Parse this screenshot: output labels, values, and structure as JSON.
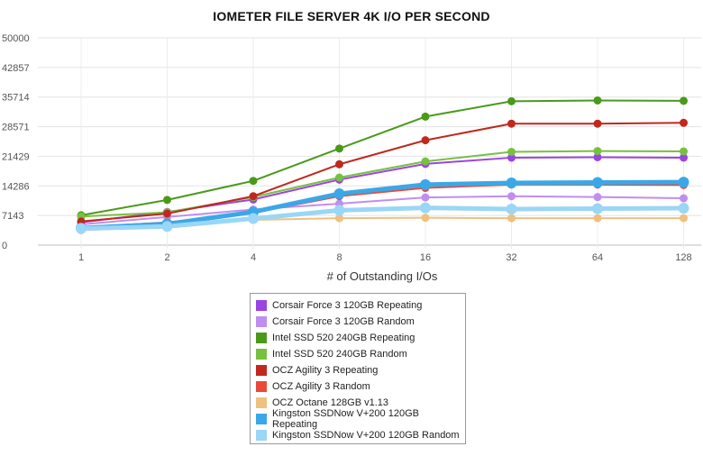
{
  "chart_data": {
    "type": "line",
    "title": "IOMETER FILE SERVER 4K I/O PER SECOND",
    "xlabel": "# of Outstanding I/Os",
    "ylabel": "",
    "categories": [
      "1",
      "2",
      "4",
      "8",
      "16",
      "32",
      "64",
      "128"
    ],
    "ylim": [
      0,
      50000
    ],
    "yticks": [
      "0",
      "7143",
      "14286",
      "21429",
      "28571",
      "35714",
      "42857",
      "50000"
    ],
    "grid": true,
    "legend_position": "bottom",
    "series": [
      {
        "name": "Corsair Force 3 120GB Repeating",
        "color": "#9b44e0",
        "values": [
          5500,
          8000,
          11000,
          15800,
          19600,
          21100,
          21200,
          21100
        ]
      },
      {
        "name": "Corsair Force 3 120GB Random",
        "color": "#c08ef0",
        "values": [
          5000,
          6800,
          8600,
          10000,
          11500,
          11800,
          11600,
          11300
        ]
      },
      {
        "name": "Intel SSD 520 240GB Repeating",
        "color": "#4a9a1a",
        "values": [
          7200,
          10900,
          15500,
          23300,
          31000,
          34700,
          34900,
          34800
        ]
      },
      {
        "name": "Intel SSD 520 240GB Random",
        "color": "#78c040",
        "values": [
          6900,
          7900,
          11600,
          16300,
          20200,
          22500,
          22700,
          22600
        ]
      },
      {
        "name": "OCZ Agility 3 Repeating",
        "color": "#c0281e",
        "values": [
          5700,
          7600,
          11800,
          19500,
          25300,
          29300,
          29300,
          29500
        ]
      },
      {
        "name": "OCZ Agility 3 Random",
        "color": "#e84a3a",
        "values": [
          4300,
          5500,
          7800,
          11800,
          13800,
          14600,
          14600,
          14500
        ]
      },
      {
        "name": "OCZ Octane 128GB v1.13",
        "color": "#f0c080",
        "values": [
          3600,
          4400,
          6100,
          6500,
          6600,
          6500,
          6500,
          6500
        ]
      },
      {
        "name": "Kingston SSDNow V+200 120GB Repeating",
        "color": "#3aa8e8",
        "values": [
          4100,
          5100,
          8000,
          12400,
          14600,
          15000,
          15100,
          15200
        ]
      },
      {
        "name": "Kingston SSDNow V+200 120GB Random",
        "color": "#9ad6f6",
        "values": [
          4000,
          4500,
          6400,
          8400,
          9000,
          8700,
          8800,
          8900
        ]
      }
    ]
  }
}
